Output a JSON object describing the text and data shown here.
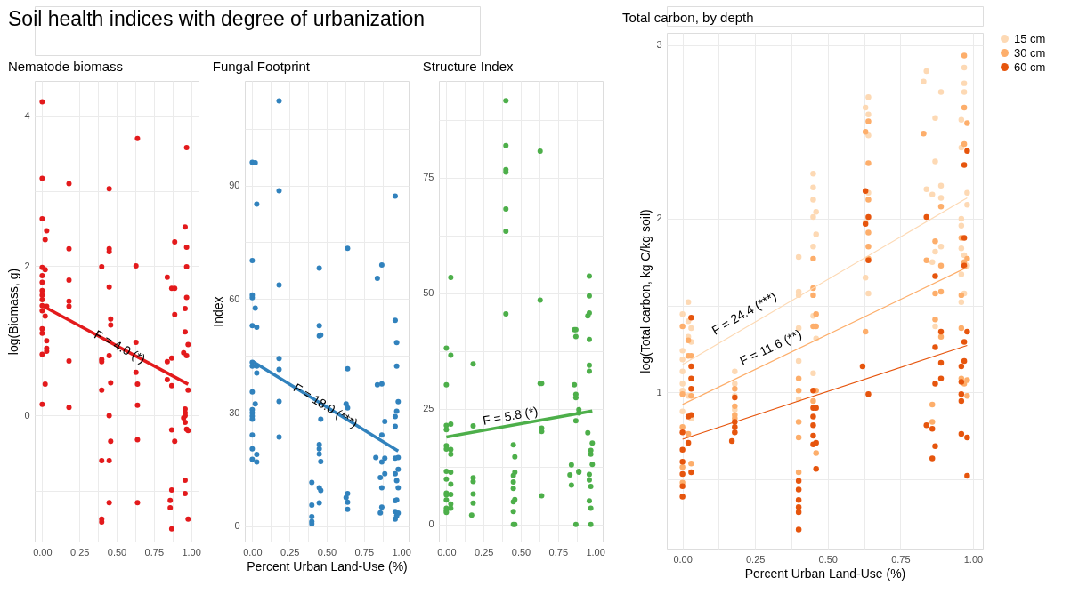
{
  "chart_data": [
    {
      "type": "scatter",
      "title": "Nematode biomass",
      "ylabel": "log(Biomass, g)",
      "annotations": [
        "Soil health indices with degree of urbanization",
        "F = 4.0 (*)"
      ],
      "xlim": [
        -0.05,
        1.05
      ],
      "xticks": [
        {
          "value": 0,
          "label": "0.00"
        },
        {
          "value": 0.125,
          "label": null
        },
        {
          "value": 0.25,
          "label": "0.25"
        },
        {
          "value": 0.375,
          "label": null
        },
        {
          "value": 0.5,
          "label": "0.50"
        },
        {
          "value": 0.625,
          "label": null
        },
        {
          "value": 0.75,
          "label": "0.75"
        },
        {
          "value": 0.875,
          "label": null
        },
        {
          "value": 1,
          "label": "1.00"
        }
      ],
      "ylim": [
        -1.68,
        4.47
      ],
      "yticks": [
        {
          "value": -1,
          "label": null
        },
        0,
        {
          "value": 1,
          "label": null
        },
        2,
        {
          "value": 3,
          "label": null
        },
        4
      ],
      "grid": true,
      "legend": false,
      "marker": "circle",
      "series": [
        {
          "color": "#e31a1c",
          "x": [
            0,
            0,
            0,
            0,
            0,
            0,
            0,
            0,
            0,
            0,
            0,
            0,
            0,
            0,
            0,
            0.02,
            0.02,
            0.02,
            0.02,
            0.03,
            0.03,
            0.03,
            0.03,
            0.03,
            0.18,
            0.18,
            0.18,
            0.18,
            0.18,
            0.18,
            0.18,
            0.4,
            0.4,
            0.4,
            0.4,
            0.4,
            0.4,
            0.4,
            0.45,
            0.45,
            0.45,
            0.45,
            0.45,
            0.45,
            0.45,
            0.45,
            0.46,
            0.46,
            0.46,
            0.46,
            0.63,
            0.63,
            0.63,
            0.64,
            0.64,
            0.64,
            0.64,
            0.64,
            0.84,
            0.84,
            0.84,
            0.86,
            0.86,
            0.87,
            0.87,
            0.87,
            0.87,
            0.87,
            0.87,
            0.89,
            0.89,
            0.89,
            0.89,
            0.96,
            0.96,
            0.96,
            0.96,
            0.96,
            0.96,
            0.96,
            0.96,
            0.96,
            0.95,
            0.95,
            0.97,
            0.97,
            0.97,
            0.97,
            0.97,
            0.97,
            0.98,
            0.98,
            0.98,
            0.98
          ],
          "values": [
            4.19,
            3.17,
            2.63,
            1.98,
            1.87,
            1.78,
            1.67,
            1.61,
            1.55,
            1.47,
            1.4,
            1.16,
            1.1,
            0.82,
            0.15,
            2.35,
            1.95,
            1.33,
            0.42,
            2.47,
            1.46,
            1.0,
            0.9,
            0.86,
            3.1,
            2.23,
            1.81,
            1.53,
            1.46,
            0.73,
            0.11,
            1.99,
            0.75,
            0.72,
            0.34,
            -0.6,
            -1.38,
            -1.42,
            3.03,
            2.23,
            2.19,
            1.72,
            0.8,
            0.0,
            -0.6,
            -1.16,
            1.29,
            1.21,
            0.44,
            -0.34,
            2.0,
            0.98,
            0.58,
            3.7,
            0.42,
            0.14,
            -0.32,
            -1.16,
            1.85,
            0.72,
            0.48,
            -1.13,
            -1.23,
            1.7,
            0.77,
            0.4,
            -0.19,
            -0.99,
            -1.51,
            2.32,
            1.7,
            1.35,
            -0.34,
            2.52,
            1.43,
            1.12,
            0.09,
            0.04,
            0.0,
            -0.09,
            -0.86,
            -1.04,
            0.84,
            -0.03,
            3.58,
            2.25,
            1.99,
            1.58,
            0.8,
            -0.18,
            0.95,
            0.34,
            -0.2,
            -1.38
          ]
        },
        {
          "type": "line",
          "marker": "none",
          "color": "#e31a1c",
          "x": [
            0,
            0.98
          ],
          "values": [
            1.47,
            0.42
          ]
        }
      ]
    },
    {
      "type": "scatter",
      "title": "Fungal Footprint",
      "xlabel": "Percent Urban Land-Use (%)",
      "ylabel": "Index",
      "annotations": [
        "F = 18.0 (***)"
      ],
      "xlim": [
        -0.05,
        1.05
      ],
      "xticks": [
        {
          "value": 0,
          "label": "0.00"
        },
        {
          "value": 0.125,
          "label": null
        },
        {
          "value": 0.25,
          "label": "0.25"
        },
        {
          "value": 0.375,
          "label": null
        },
        {
          "value": 0.5,
          "label": "0.50"
        },
        {
          "value": 0.625,
          "label": null
        },
        {
          "value": 0.75,
          "label": "0.75"
        },
        {
          "value": 0.875,
          "label": null
        },
        {
          "value": 1,
          "label": "1.00"
        }
      ],
      "ylim": [
        -4,
        117.6
      ],
      "yticks": [
        0,
        {
          "value": 15,
          "label": null
        },
        30,
        {
          "value": 45,
          "label": null
        },
        60,
        {
          "value": 75,
          "label": null
        },
        90,
        {
          "value": 105,
          "label": null
        }
      ],
      "grid": true,
      "legend": false,
      "marker": "circle",
      "series": [
        {
          "color": "#3182bd",
          "x": [
            0,
            0,
            0,
            0,
            0,
            0,
            0,
            0,
            0,
            0,
            0,
            0,
            0,
            0,
            0,
            0.02,
            0.02,
            0.02,
            0.03,
            0.03,
            0.03,
            0.03,
            0.03,
            0.03,
            0.18,
            0.18,
            0.18,
            0.18,
            0.18,
            0.18,
            0.18,
            0.4,
            0.4,
            0.4,
            0.4,
            0.4,
            0.45,
            0.45,
            0.45,
            0.45,
            0.45,
            0.45,
            0.45,
            0.45,
            0.46,
            0.46,
            0.46,
            0.46,
            0.63,
            0.63,
            0.64,
            0.64,
            0.64,
            0.64,
            0.64,
            0.64,
            0.83,
            0.84,
            0.84,
            0.86,
            0.86,
            0.87,
            0.87,
            0.87,
            0.87,
            0.87,
            0.87,
            0.89,
            0.89,
            0.89,
            0.96,
            0.96,
            0.96,
            0.96,
            0.96,
            0.96,
            0.96,
            0.96,
            0.96,
            0.97,
            0.97,
            0.97,
            0.97,
            0.97,
            0.97,
            0.98,
            0.98,
            0.98,
            0.98,
            0.98
          ],
          "values": [
            96.1,
            70.2,
            61.1,
            60.4,
            53.0,
            43.3,
            42.3,
            35.5,
            30.8,
            30.0,
            29.1,
            28.3,
            24.1,
            20.5,
            17.7,
            96.0,
            57.6,
            32.3,
            85.1,
            52.6,
            42.3,
            40.5,
            19.0,
            17.0,
            112.3,
            88.6,
            63.7,
            44.3,
            41.4,
            33.0,
            23.6,
            11.6,
            5.6,
            2.6,
            1.3,
            0.7,
            68.2,
            53.0,
            50.3,
            21.6,
            20.5,
            19.1,
            10.2,
            6.2,
            50.5,
            28.3,
            17.1,
            9.5,
            32.3,
            7.6,
            73.4,
            41.6,
            31.3,
            8.7,
            6.4,
            4.5,
            18.2,
            65.5,
            37.4,
            12.9,
            3.6,
            69.0,
            37.6,
            24.1,
            17.0,
            10.2,
            5.1,
            27.7,
            18.0,
            13.9,
            87.2,
            54.4,
            29.0,
            26.4,
            18.0,
            13.9,
            6.8,
            3.9,
            1.9,
            48.5,
            42.3,
            30.4,
            12.1,
            7.0,
            2.8,
            32.9,
            18.2,
            15.1,
            10.2,
            3.5
          ]
        },
        {
          "type": "line",
          "marker": "none",
          "color": "#3182bd",
          "x": [
            0,
            0.98
          ],
          "values": [
            43.6,
            19.9
          ]
        }
      ]
    },
    {
      "type": "scatter",
      "title": "Structure Index",
      "annotations": [
        "F = 5.8 (*)"
      ],
      "xlim": [
        -0.05,
        1.05
      ],
      "xticks": [
        {
          "value": 0,
          "label": "0.00"
        },
        {
          "value": 0.125,
          "label": null
        },
        {
          "value": 0.25,
          "label": "0.25"
        },
        {
          "value": 0.375,
          "label": null
        },
        {
          "value": 0.5,
          "label": "0.50"
        },
        {
          "value": 0.625,
          "label": null
        },
        {
          "value": 0.75,
          "label": "0.75"
        },
        {
          "value": 0.875,
          "label": null
        },
        {
          "value": 1,
          "label": "1.00"
        }
      ],
      "ylim": [
        -3.7,
        95.9
      ],
      "yticks": [
        0,
        {
          "value": 12.5,
          "label": null
        },
        25,
        {
          "value": 37.5,
          "label": null
        },
        50,
        {
          "value": 62.5,
          "label": null
        },
        75,
        {
          "value": 87.5,
          "label": null
        }
      ],
      "grid": true,
      "legend": false,
      "marker": "circle",
      "series": [
        {
          "color": "#4daf4a",
          "x": [
            0,
            0,
            0,
            0,
            0,
            0,
            0,
            0,
            0,
            0,
            0,
            0,
            0,
            0,
            0.03,
            0.03,
            0.03,
            0.03,
            0.03,
            0.03,
            0.03,
            0.03,
            0.03,
            0.03,
            0.17,
            0.18,
            0.18,
            0.18,
            0.18,
            0.18,
            0.18,
            0.4,
            0.4,
            0.4,
            0.4,
            0.4,
            0.4,
            0.4,
            0.45,
            0.45,
            0.45,
            0.45,
            0.45,
            0.45,
            0.45,
            0.46,
            0.46,
            0.46,
            0.46,
            0.63,
            0.63,
            0.63,
            0.64,
            0.64,
            0.64,
            0.64,
            0.83,
            0.84,
            0.84,
            0.86,
            0.86,
            0.87,
            0.87,
            0.87,
            0.87,
            0.87,
            0.87,
            0.89,
            0.89,
            0.89,
            0.89,
            0.95,
            0.95,
            0.96,
            0.96,
            0.96,
            0.96,
            0.96,
            0.96,
            0.96,
            0.96,
            0.96,
            0.97,
            0.97,
            0.97,
            0.97,
            0.97,
            0.98,
            0.98
          ],
          "values": [
            38.1,
            30.2,
            21.4,
            20.5,
            17.0,
            16.3,
            11.5,
            9.8,
            6.8,
            6.4,
            5.3,
            3.5,
            3.0,
            2.6,
            53.4,
            36.6,
            21.7,
            16.2,
            15.2,
            11.3,
            8.7,
            6.5,
            4.4,
            3.5,
            2.0,
            34.7,
            21.3,
            10.1,
            9.3,
            6.6,
            4.6,
            91.6,
            81.9,
            76.7,
            76.2,
            68.2,
            63.4,
            45.5,
            17.2,
            10.6,
            9.2,
            7.8,
            4.9,
            2.8,
            0,
            14.6,
            11.3,
            5.4,
            0,
            80.7,
            48.5,
            30.5,
            30.5,
            20.8,
            20.1,
            6.2,
            10.7,
            12.9,
            8.5,
            42.1,
            30.2,
            42.1,
            40.6,
            28.1,
            27.4,
            22.4,
            0,
            24.8,
            24.1,
            11.5,
            11.3,
            45.1,
            19.8,
            53.7,
            49.4,
            45.7,
            40.0,
            34.4,
            33.1,
            10.8,
            9.6,
            5.1,
            16.0,
            15.2,
            8.2,
            3.5,
            0,
            17.6,
            13.0
          ]
        },
        {
          "type": "line",
          "marker": "none",
          "color": "#4daf4a",
          "x": [
            0,
            0.98
          ],
          "values": [
            18.9,
            24.5
          ]
        }
      ]
    },
    {
      "type": "scatter",
      "title": "Total carbon, by depth",
      "xlabel": "Percent Urban Land-Use (%)",
      "ylabel": "log(Total carbon, kg C/kg soil)",
      "annotations": [
        "F = 24.4 (***)",
        "F = 11.6 (**)"
      ],
      "xlim": [
        -0.054,
        1.034
      ],
      "xticks": [
        {
          "value": 0,
          "label": "0.00"
        },
        {
          "value": 0.125,
          "label": null
        },
        {
          "value": 0.25,
          "label": "0.25"
        },
        {
          "value": 0.375,
          "label": null
        },
        {
          "value": 0.5,
          "label": "0.50"
        },
        {
          "value": 0.625,
          "label": null
        },
        {
          "value": 0.75,
          "label": "0.75"
        },
        {
          "value": 0.875,
          "label": null
        },
        {
          "value": 1,
          "label": "1.00"
        }
      ],
      "ylim": [
        0.1,
        3.07
      ],
      "yticks": [
        {
          "value": 0.5,
          "label": null
        },
        1,
        {
          "value": 1.5,
          "label": null
        },
        2,
        {
          "value": 2.5,
          "label": null
        },
        3
      ],
      "grid": true,
      "legend": "right",
      "marker": "circle",
      "series": [
        {
          "name": "15 cm",
          "color": "#fdd9b4",
          "x": [
            0,
            0,
            0,
            0,
            0,
            0,
            0,
            0.02,
            0.02,
            0.02,
            0.02,
            0.03,
            0.03,
            0.03,
            0.18,
            0.18,
            0.18,
            0.18,
            0.4,
            0.4,
            0.4,
            0.4,
            0.4,
            0.4,
            0.45,
            0.45,
            0.45,
            0.45,
            0.45,
            0.45,
            0.45,
            0.46,
            0.46,
            0.46,
            0.63,
            0.63,
            0.63,
            0.64,
            0.64,
            0.64,
            0.64,
            0.64,
            0.83,
            0.84,
            0.84,
            0.86,
            0.86,
            0.87,
            0.87,
            0.87,
            0.87,
            0.89,
            0.89,
            0.89,
            0.89,
            0.96,
            0.96,
            0.96,
            0.96,
            0.96,
            0.96,
            0.96,
            0.97,
            0.97,
            0.97,
            0.97,
            0.97,
            0.98,
            0.98,
            0.98
          ],
          "values": [
            1.45,
            1.24,
            1.19,
            1.12,
            1.05,
            1.01,
            0.89,
            1.52,
            1.41,
            1.32,
            0.98,
            1.37,
            1.29,
            0.85,
            1.12,
            1.05,
            0.98,
            0.9,
            1.78,
            1.58,
            1.56,
            1.37,
            1.18,
            0.96,
            2.26,
            2.18,
            2.11,
            2.01,
            1.84,
            1.44,
            1.11,
            2.04,
            1.91,
            1.31,
            2.64,
            1.98,
            1.66,
            2.7,
            2.6,
            2.48,
            2.15,
            1.57,
            2.79,
            2.85,
            2.17,
            2.14,
            1.75,
            2.58,
            2.33,
            1.81,
            1.38,
            2.73,
            2.19,
            2.12,
            1.84,
            2.57,
            2.41,
            2.0,
            1.96,
            1.83,
            1.68,
            1.52,
            2.87,
            2.78,
            2.73,
            1.79,
            1.57,
            2.15,
            2.08,
            1.73
          ]
        },
        {
          "name": "30 cm",
          "color": "#fdae6b",
          "x": [
            0,
            0,
            0,
            0,
            0,
            0.02,
            0.02,
            0.02,
            0.03,
            0.03,
            0.03,
            0.18,
            0.18,
            0.18,
            0.18,
            0.4,
            0.4,
            0.4,
            0.4,
            0.4,
            0.45,
            0.45,
            0.45,
            0.45,
            0.45,
            0.46,
            0.46,
            0.46,
            0.46,
            0.63,
            0.63,
            0.64,
            0.64,
            0.64,
            0.64,
            0.64,
            0.64,
            0.83,
            0.84,
            0.86,
            0.86,
            0.87,
            0.87,
            0.87,
            0.89,
            0.89,
            0.89,
            0.89,
            0.96,
            0.96,
            0.96,
            0.96,
            0.97,
            0.97,
            0.97,
            0.97,
            0.97,
            0.98,
            0.98,
            0.98,
            0.98
          ],
          "values": [
            1.38,
            0.99,
            0.8,
            0.57,
            0.48,
            1.3,
            1.21,
            0.76,
            1.21,
            0.98,
            0.59,
            1.02,
            0.92,
            0.87,
            0.85,
            1.08,
            1.01,
            0.83,
            0.74,
            0.54,
            1.77,
            1.6,
            1.56,
            1.38,
            0.95,
            1.45,
            1.38,
            1.01,
            0.65,
            2.5,
            1.35,
            2.56,
            2.32,
            2.11,
            1.92,
            1.84,
            1.77,
            2.49,
            1.76,
            0.93,
            0.83,
            1.87,
            1.57,
            1.42,
            2.07,
            1.73,
            1.58,
            1.32,
            1.89,
            1.56,
            1.37,
            1.08,
            2.94,
            2.64,
            2.43,
            1.75,
            1.05,
            2.55,
            1.77,
            1.07,
            0.98
          ]
        },
        {
          "name": "60 cm",
          "color": "#e6550d",
          "x": [
            0,
            0,
            0,
            0,
            0,
            0,
            0.02,
            0.02,
            0.03,
            0.03,
            0.03,
            0.03,
            0.03,
            0.03,
            0.17,
            0.18,
            0.18,
            0.18,
            0.18,
            0.4,
            0.4,
            0.4,
            0.4,
            0.4,
            0.4,
            0.45,
            0.45,
            0.45,
            0.45,
            0.45,
            0.45,
            0.46,
            0.46,
            0.46,
            0.62,
            0.63,
            0.63,
            0.64,
            0.64,
            0.64,
            0.84,
            0.84,
            0.86,
            0.86,
            0.87,
            0.87,
            0.87,
            0.87,
            0.89,
            0.89,
            0.89,
            0.96,
            0.96,
            0.96,
            0.96,
            0.96,
            0.97,
            0.97,
            0.97,
            0.97,
            0.97,
            0.98,
            0.98,
            0.98,
            0.98
          ],
          "values": [
            0.77,
            0.67,
            0.6,
            0.53,
            0.46,
            0.4,
            0.86,
            0.71,
            1.43,
            1.15,
            1.08,
            1.02,
            0.87,
            0.54,
            0.72,
            0.97,
            0.83,
            0.8,
            0.77,
            0.49,
            0.44,
            0.38,
            0.34,
            0.31,
            0.21,
            1.01,
            0.91,
            0.86,
            0.81,
            0.75,
            0.7,
            0.91,
            0.71,
            0.56,
            1.15,
            2.16,
            1.97,
            2.01,
            1.76,
            0.99,
            2.01,
            0.81,
            0.79,
            0.62,
            1.67,
            1.26,
            1.05,
            0.69,
            1.35,
            1.17,
            1.08,
            1.15,
            1.06,
            0.99,
            0.95,
            0.76,
            2.31,
            1.89,
            1.73,
            1.29,
            1.18,
            2.39,
            1.35,
            0.74,
            0.52
          ]
        },
        {
          "type": "line",
          "marker": "none",
          "color": "#fdd9b4",
          "x": [
            0,
            0.98
          ],
          "values": [
            1.16,
            2.12
          ]
        },
        {
          "type": "line",
          "marker": "none",
          "color": "#fdae6b",
          "x": [
            0,
            0.98
          ],
          "values": [
            0.93,
            1.72
          ]
        },
        {
          "type": "line",
          "marker": "none",
          "color": "#e6550d",
          "x": [
            0,
            0.98
          ],
          "values": [
            0.73,
            1.27
          ]
        }
      ]
    }
  ]
}
